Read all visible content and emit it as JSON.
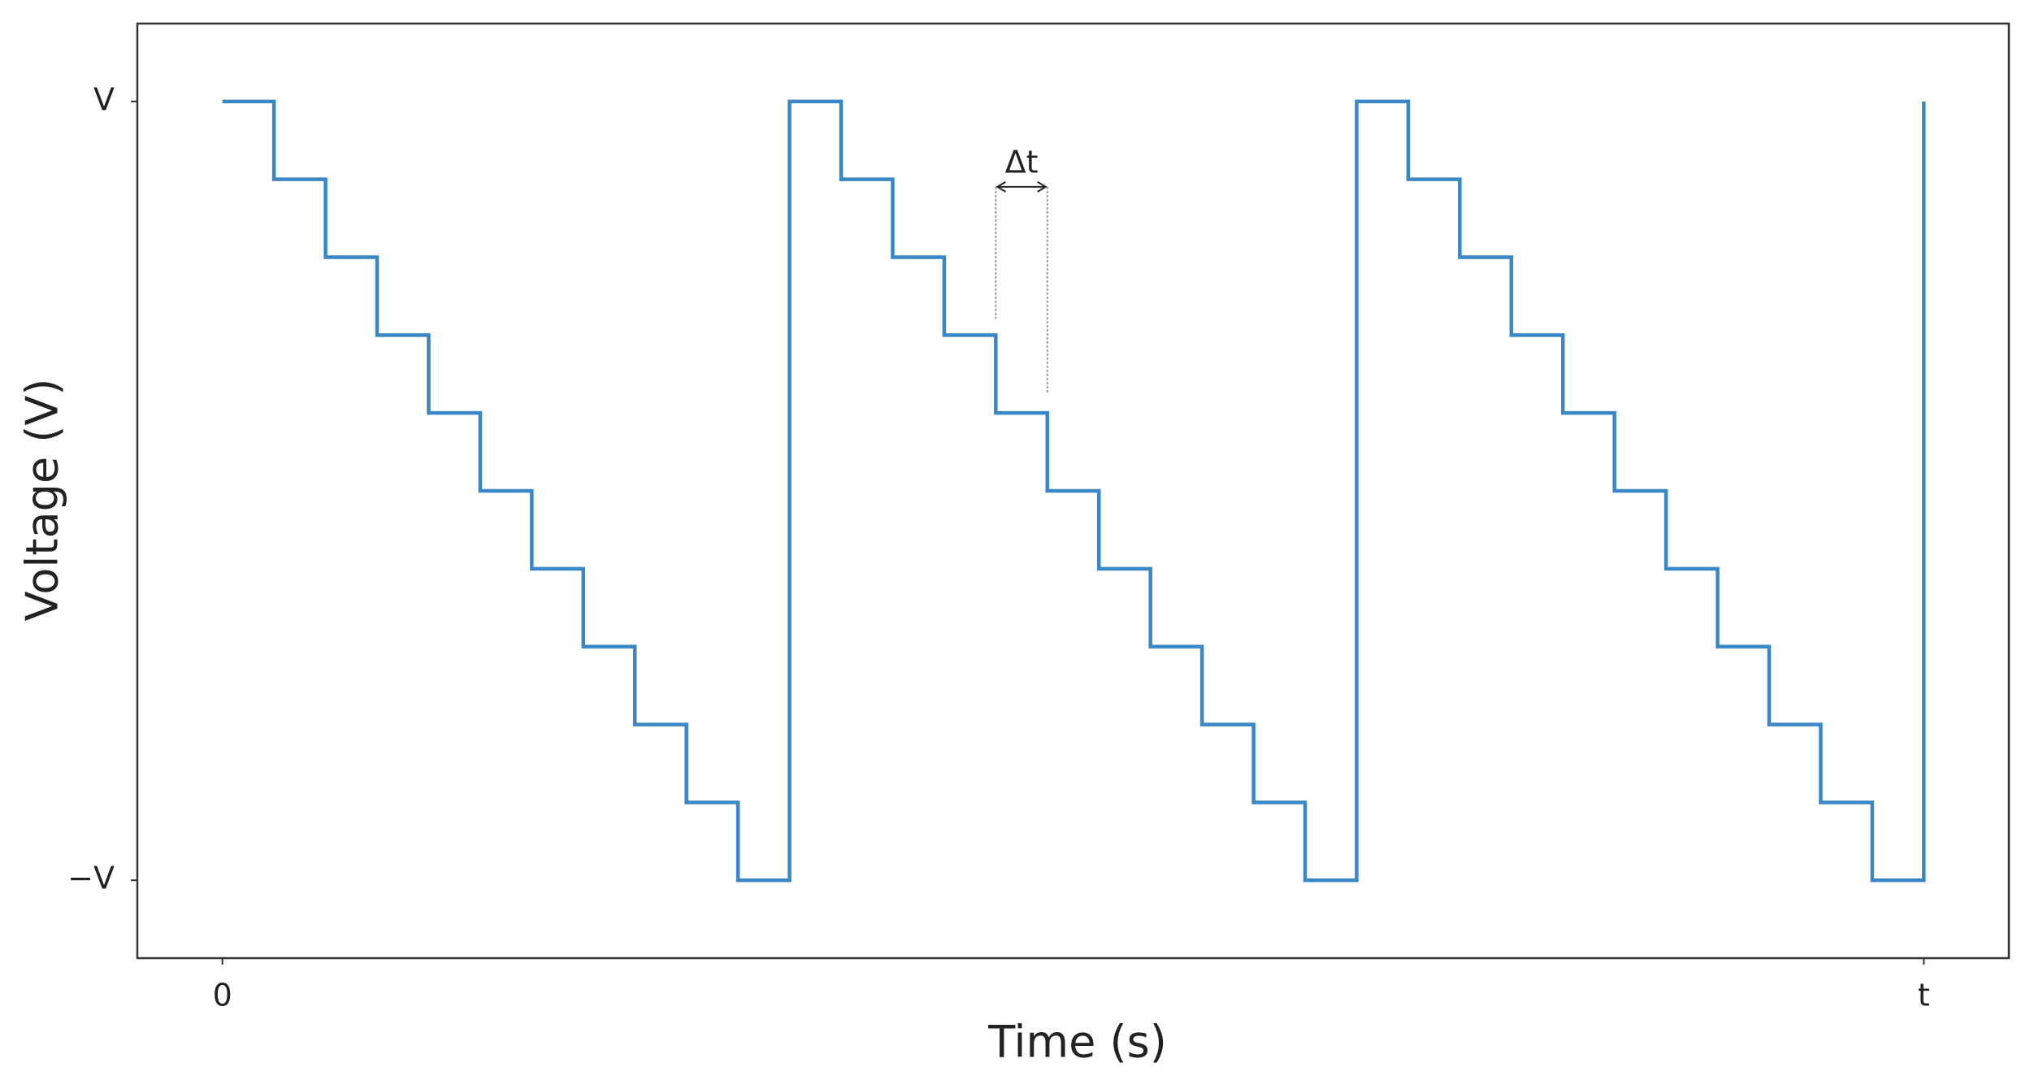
{
  "chart_data": {
    "type": "line",
    "step": "post",
    "x_label": "Time (s)",
    "y_label": "Voltage (V)",
    "x": [
      0,
      1,
      2,
      3,
      4,
      5,
      6,
      7,
      8,
      9,
      10,
      11,
      12,
      13,
      14,
      15,
      16,
      17,
      18,
      19,
      20,
      21,
      22,
      23,
      24,
      25,
      26,
      27,
      28,
      29,
      30,
      31,
      32,
      33
    ],
    "series": [
      {
        "color": "#3a87c8",
        "values": [
          1,
          0.8,
          0.6,
          0.4,
          0.2,
          0,
          -0.2,
          -0.4,
          -0.6,
          -0.8,
          -1,
          1,
          0.8,
          0.6,
          0.4,
          0.2,
          0,
          -0.2,
          -0.4,
          -0.6,
          -0.8,
          -1,
          1,
          0.8,
          0.6,
          0.4,
          0.2,
          0,
          -0.2,
          -0.4,
          -0.6,
          -0.8,
          -1,
          1
        ]
      }
    ],
    "xlim": [
      -1.65,
      34.65
    ],
    "ylim": [
      -1.2,
      1.2
    ],
    "xticks": [
      0,
      {
        "value": 33,
        "label": "t"
      }
    ],
    "yticks": [
      {
        "value": -1,
        "label": "−V"
      },
      {
        "value": 1,
        "label": "V"
      }
    ],
    "grid": false,
    "annotations": [
      {
        "text": "Δt"
      }
    ]
  }
}
